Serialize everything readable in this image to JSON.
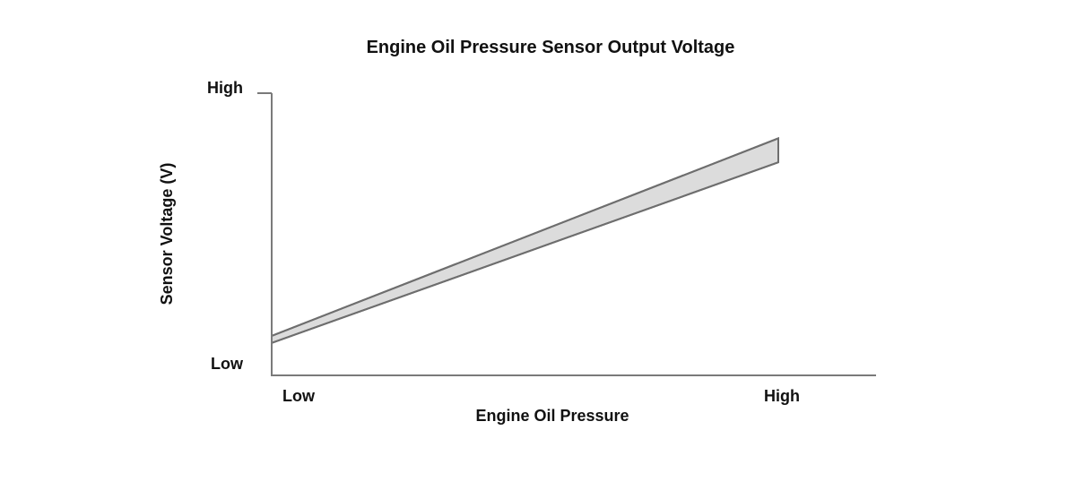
{
  "chart_data": {
    "type": "area",
    "title": "Engine Oil Pressure Sensor Output Voltage",
    "xlabel": "Engine Oil Pressure",
    "ylabel": "Sensor Voltage (V)",
    "x_ticks": [
      "Low",
      "High"
    ],
    "y_ticks": [
      "Low",
      "High"
    ],
    "xlim": [
      0,
      1
    ],
    "ylim": [
      0,
      1
    ],
    "grid": false,
    "legend": "none",
    "series": [
      {
        "kind": "band",
        "x": [
          0,
          1
        ],
        "upper": [
          0.14,
          0.84
        ],
        "lower": [
          0.115,
          0.755
        ]
      }
    ],
    "colors": {
      "band_fill": "#dcdcdc",
      "band_stroke": "#6e6e6e",
      "axis": "#7a7a7a",
      "text": "#111111"
    }
  }
}
